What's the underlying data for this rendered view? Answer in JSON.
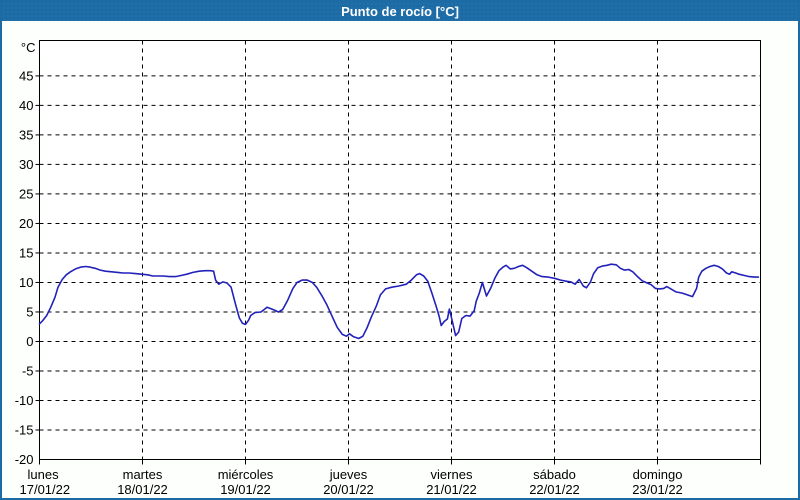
{
  "window": {
    "title": "Punto de rocío [°C]",
    "titlebar_color": "#1d6ba5",
    "border_color": "#1d6ba5",
    "background_color": "#fdfffd"
  },
  "chart_data": {
    "type": "line",
    "title": "Punto de rocío [°C]",
    "y_unit_label": "°C",
    "ylabel": "Punto de rocío",
    "xlabel": "",
    "ylim": [
      -20,
      51
    ],
    "y_tick_step": 5,
    "y_ticks": [
      45,
      40,
      35,
      30,
      25,
      20,
      15,
      10,
      5,
      0,
      -5,
      -10,
      -15,
      -20
    ],
    "x_range_days": [
      0,
      7
    ],
    "grid": "dashed",
    "grid_color": "#000000",
    "legend_position": "none",
    "x_days": [
      {
        "name": "lunes",
        "date": "17/01/22"
      },
      {
        "name": "martes",
        "date": "18/01/22"
      },
      {
        "name": "miércoles",
        "date": "19/01/22"
      },
      {
        "name": "jueves",
        "date": "20/01/22"
      },
      {
        "name": "viernes",
        "date": "21/01/22"
      },
      {
        "name": "sábado",
        "date": "22/01/22"
      },
      {
        "name": "domingo",
        "date": "23/01/22"
      }
    ],
    "series": [
      {
        "name": "Punto de rocío",
        "unit": "°C",
        "color": "#2222bb",
        "points": [
          [
            0,
            3.0
          ],
          [
            0.03,
            3.5
          ],
          [
            0.07,
            4.4
          ],
          [
            0.11,
            5.8
          ],
          [
            0.15,
            7.5
          ],
          [
            0.18,
            9.2
          ],
          [
            0.22,
            10.5
          ],
          [
            0.26,
            11.3
          ],
          [
            0.3,
            11.8
          ],
          [
            0.35,
            12.3
          ],
          [
            0.4,
            12.6
          ],
          [
            0.45,
            12.7
          ],
          [
            0.49,
            12.6
          ],
          [
            0.54,
            12.4
          ],
          [
            0.59,
            12.1
          ],
          [
            0.64,
            11.9
          ],
          [
            0.7,
            11.8
          ],
          [
            0.76,
            11.7
          ],
          [
            0.81,
            11.6
          ],
          [
            0.87,
            11.6
          ],
          [
            0.93,
            11.5
          ],
          [
            0.99,
            11.4
          ],
          [
            1.05,
            11.3
          ],
          [
            1.1,
            11.1
          ],
          [
            1.14,
            11.1
          ],
          [
            1.2,
            11.1
          ],
          [
            1.26,
            11.0
          ],
          [
            1.32,
            11.0
          ],
          [
            1.38,
            11.2
          ],
          [
            1.43,
            11.4
          ],
          [
            1.49,
            11.7
          ],
          [
            1.55,
            11.9
          ],
          [
            1.61,
            12.0
          ],
          [
            1.66,
            12.0
          ],
          [
            1.69,
            11.9
          ],
          [
            1.71,
            10.4
          ],
          [
            1.74,
            9.7
          ],
          [
            1.78,
            10.1
          ],
          [
            1.82,
            9.9
          ],
          [
            1.86,
            9.2
          ],
          [
            1.9,
            6.5
          ],
          [
            1.94,
            4.0
          ],
          [
            1.97,
            3.1
          ],
          [
            2.0,
            2.9
          ],
          [
            2.03,
            3.6
          ],
          [
            2.05,
            4.4
          ],
          [
            2.09,
            4.9
          ],
          [
            2.15,
            5.0
          ],
          [
            2.21,
            5.8
          ],
          [
            2.27,
            5.4
          ],
          [
            2.32,
            5.0
          ],
          [
            2.36,
            5.4
          ],
          [
            2.41,
            7.0
          ],
          [
            2.46,
            9.0
          ],
          [
            2.5,
            10.0
          ],
          [
            2.55,
            10.4
          ],
          [
            2.6,
            10.4
          ],
          [
            2.65,
            10.0
          ],
          [
            2.69,
            9.2
          ],
          [
            2.74,
            7.8
          ],
          [
            2.79,
            6.2
          ],
          [
            2.84,
            4.3
          ],
          [
            2.89,
            2.4
          ],
          [
            2.94,
            1.2
          ],
          [
            2.98,
            0.9
          ],
          [
            3.01,
            1.3
          ],
          [
            3.05,
            0.8
          ],
          [
            3.1,
            0.5
          ],
          [
            3.14,
            0.9
          ],
          [
            3.18,
            2.3
          ],
          [
            3.22,
            4.1
          ],
          [
            3.27,
            6.0
          ],
          [
            3.31,
            7.9
          ],
          [
            3.36,
            8.9
          ],
          [
            3.42,
            9.2
          ],
          [
            3.49,
            9.4
          ],
          [
            3.56,
            9.7
          ],
          [
            3.61,
            10.4
          ],
          [
            3.66,
            11.3
          ],
          [
            3.69,
            11.5
          ],
          [
            3.73,
            11.1
          ],
          [
            3.77,
            10.2
          ],
          [
            3.81,
            8.2
          ],
          [
            3.85,
            6.0
          ],
          [
            3.88,
            4.3
          ],
          [
            3.9,
            2.7
          ],
          [
            3.93,
            3.4
          ],
          [
            3.96,
            3.8
          ],
          [
            3.98,
            5.5
          ],
          [
            4.01,
            3.3
          ],
          [
            4.04,
            1.0
          ],
          [
            4.07,
            1.6
          ],
          [
            4.1,
            3.9
          ],
          [
            4.14,
            4.4
          ],
          [
            4.18,
            4.3
          ],
          [
            4.22,
            5.2
          ],
          [
            4.24,
            6.8
          ],
          [
            4.27,
            8.2
          ],
          [
            4.3,
            10.0
          ],
          [
            4.34,
            7.7
          ],
          [
            4.38,
            9.0
          ],
          [
            4.42,
            10.7
          ],
          [
            4.46,
            12.0
          ],
          [
            4.5,
            12.6
          ],
          [
            4.53,
            12.9
          ],
          [
            4.57,
            12.3
          ],
          [
            4.61,
            12.4
          ],
          [
            4.65,
            12.7
          ],
          [
            4.69,
            12.9
          ],
          [
            4.73,
            12.5
          ],
          [
            4.78,
            11.9
          ],
          [
            4.83,
            11.3
          ],
          [
            4.88,
            11.0
          ],
          [
            4.94,
            10.9
          ],
          [
            5.0,
            10.7
          ],
          [
            5.06,
            10.4
          ],
          [
            5.12,
            10.2
          ],
          [
            5.16,
            10.1
          ],
          [
            5.2,
            9.7
          ],
          [
            5.24,
            10.5
          ],
          [
            5.28,
            9.4
          ],
          [
            5.31,
            9.1
          ],
          [
            5.35,
            10.1
          ],
          [
            5.38,
            11.5
          ],
          [
            5.42,
            12.5
          ],
          [
            5.47,
            12.8
          ],
          [
            5.51,
            12.9
          ],
          [
            5.55,
            13.1
          ],
          [
            5.6,
            13.0
          ],
          [
            5.64,
            12.4
          ],
          [
            5.68,
            12.1
          ],
          [
            5.72,
            12.2
          ],
          [
            5.76,
            11.8
          ],
          [
            5.8,
            11.1
          ],
          [
            5.85,
            10.3
          ],
          [
            5.9,
            9.9
          ],
          [
            5.94,
            9.6
          ],
          [
            5.98,
            9.0
          ],
          [
            6.02,
            8.9
          ],
          [
            6.06,
            9.0
          ],
          [
            6.09,
            9.3
          ],
          [
            6.13,
            8.9
          ],
          [
            6.18,
            8.4
          ],
          [
            6.24,
            8.2
          ],
          [
            6.29,
            7.9
          ],
          [
            6.34,
            7.6
          ],
          [
            6.38,
            9.0
          ],
          [
            6.4,
            10.9
          ],
          [
            6.43,
            11.9
          ],
          [
            6.47,
            12.4
          ],
          [
            6.51,
            12.7
          ],
          [
            6.55,
            12.9
          ],
          [
            6.59,
            12.7
          ],
          [
            6.63,
            12.3
          ],
          [
            6.67,
            11.6
          ],
          [
            6.7,
            11.4
          ],
          [
            6.72,
            11.8
          ],
          [
            6.76,
            11.6
          ],
          [
            6.79,
            11.4
          ],
          [
            6.84,
            11.2
          ],
          [
            6.89,
            11.0
          ],
          [
            6.94,
            10.9
          ],
          [
            6.98,
            10.9
          ]
        ]
      }
    ]
  }
}
